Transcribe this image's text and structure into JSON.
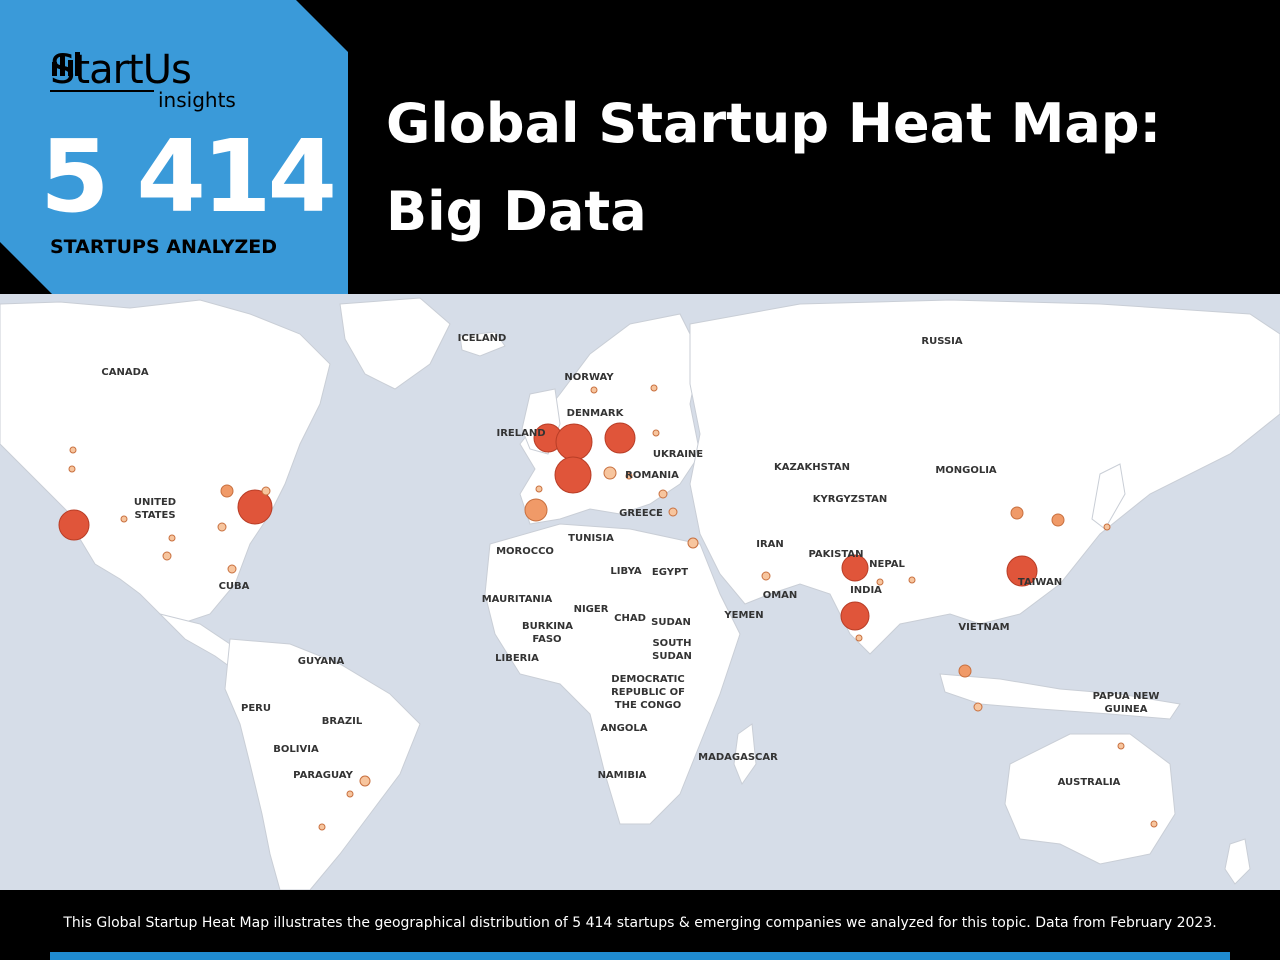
{
  "brand": {
    "name": "StartUs",
    "sub": "insights",
    "accent_color": "#3a9ad9"
  },
  "count": {
    "value": "5 414",
    "caption": "STARTUPS ANALYZED"
  },
  "title": {
    "line1": "Global Startup Heat Map:",
    "line2": "Big Data"
  },
  "map": {
    "land_color": "#ffffff",
    "water_color": "#d6dde8",
    "country_labels": [
      "ICELAND",
      "RUSSIA",
      "CANADA",
      "NORWAY",
      "DENMARK",
      "IRELAND",
      "UKRAINE",
      "ROMANIA",
      "KAZAKHSTAN",
      "MONGOLIA",
      "KYRGYZSTAN",
      "UNITED STATES",
      "GREECE",
      "TUNISIA",
      "MOROCCO",
      "IRAN",
      "PAKISTAN",
      "NEPAL",
      "LIBYA",
      "EGYPT",
      "INDIA",
      "TAIWAN",
      "CUBA",
      "OMAN",
      "YEMEN",
      "MAURITANIA",
      "NIGER",
      "CHAD",
      "SUDAN",
      "BURKINA FASO",
      "SOUTH SUDAN",
      "VIETNAM",
      "LIBERIA",
      "GUYANA",
      "DEMOCRATIC REPUBLIC OF THE CONGO",
      "PAPUA NEW GUINEA",
      "PERU",
      "BRAZIL",
      "ANGOLA",
      "BOLIVIA",
      "MADAGASCAR",
      "NAMIBIA",
      "PARAGUAY",
      "AUSTRALIA"
    ],
    "hotspot_levels": [
      "high",
      "medium",
      "low"
    ],
    "hotspot_colors": {
      "high": "#e0553a",
      "medium": "#f09a68",
      "low": "#f7c59e"
    }
  },
  "footer": {
    "caption": "This Global Startup Heat Map illustrates the geographical distribution of 5 414 startups & emerging companies we analyzed for this topic. Data from February 2023.",
    "bar_color": "#1f8bd1"
  }
}
